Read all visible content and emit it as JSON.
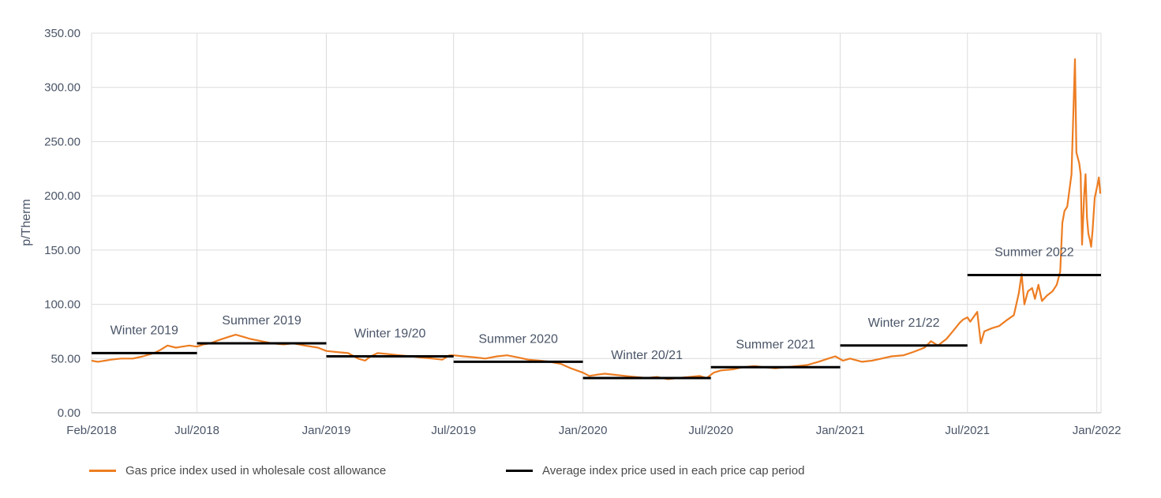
{
  "chart_data": {
    "type": "line",
    "ylabel": "p/Therm",
    "xlabel": "",
    "ylim": [
      0,
      350
    ],
    "yticks": [
      "0.00",
      "50.00",
      "100.00",
      "150.00",
      "200.00",
      "250.00",
      "300.00",
      "350.00"
    ],
    "xticks": [
      {
        "label": "Feb/2018",
        "date": "2018-02-01"
      },
      {
        "label": "Jul/2018",
        "date": "2018-07-01"
      },
      {
        "label": "Jan/2019",
        "date": "2019-01-01"
      },
      {
        "label": "Jul/2019",
        "date": "2019-07-01"
      },
      {
        "label": "Jan/2020",
        "date": "2020-01-01"
      },
      {
        "label": "Jul/2020",
        "date": "2020-07-01"
      },
      {
        "label": "Jan/2021",
        "date": "2021-01-01"
      },
      {
        "label": "Jul/2021",
        "date": "2021-07-01"
      },
      {
        "label": "Jan/2022",
        "date": "2022-01-01"
      }
    ],
    "xlim": [
      "2018-02-01",
      "2022-01-07"
    ],
    "grid": true,
    "legend_position": "bottom",
    "colors": {
      "gas_index": "#ed7d22",
      "period_average": "#000000",
      "grid": "#dcdcdc",
      "axis_text": "#4a5568"
    },
    "series": [
      {
        "name": "Gas price index used in wholesale cost allowance",
        "points": [
          [
            "2018-02-01",
            48
          ],
          [
            "2018-02-10",
            47
          ],
          [
            "2018-02-20",
            48
          ],
          [
            "2018-03-01",
            49
          ],
          [
            "2018-03-15",
            50
          ],
          [
            "2018-04-01",
            50
          ],
          [
            "2018-04-15",
            52
          ],
          [
            "2018-05-01",
            55
          ],
          [
            "2018-05-10",
            58
          ],
          [
            "2018-05-20",
            62
          ],
          [
            "2018-06-01",
            60
          ],
          [
            "2018-06-10",
            61
          ],
          [
            "2018-06-20",
            62
          ],
          [
            "2018-07-01",
            61
          ],
          [
            "2018-07-10",
            63
          ],
          [
            "2018-07-20",
            64
          ],
          [
            "2018-08-01",
            67
          ],
          [
            "2018-08-15",
            70
          ],
          [
            "2018-08-25",
            72
          ],
          [
            "2018-09-05",
            70
          ],
          [
            "2018-09-15",
            68
          ],
          [
            "2018-10-01",
            66
          ],
          [
            "2018-10-15",
            64
          ],
          [
            "2018-11-01",
            63
          ],
          [
            "2018-11-15",
            64
          ],
          [
            "2018-12-01",
            62
          ],
          [
            "2018-12-20",
            60
          ],
          [
            "2019-01-01",
            57
          ],
          [
            "2019-01-15",
            56
          ],
          [
            "2019-02-01",
            55
          ],
          [
            "2019-02-15",
            50
          ],
          [
            "2019-02-25",
            48
          ],
          [
            "2019-03-05",
            52
          ],
          [
            "2019-03-15",
            55
          ],
          [
            "2019-04-01",
            54
          ],
          [
            "2019-04-15",
            53
          ],
          [
            "2019-05-01",
            52
          ],
          [
            "2019-05-15",
            51
          ],
          [
            "2019-06-01",
            50
          ],
          [
            "2019-06-15",
            49
          ],
          [
            "2019-06-25",
            53
          ],
          [
            "2019-07-01",
            53
          ],
          [
            "2019-07-15",
            52
          ],
          [
            "2019-08-01",
            51
          ],
          [
            "2019-08-15",
            50
          ],
          [
            "2019-09-01",
            52
          ],
          [
            "2019-09-15",
            53
          ],
          [
            "2019-10-01",
            51
          ],
          [
            "2019-10-15",
            49
          ],
          [
            "2019-11-01",
            48
          ],
          [
            "2019-11-15",
            47
          ],
          [
            "2019-12-01",
            45
          ],
          [
            "2019-12-15",
            41
          ],
          [
            "2020-01-01",
            37
          ],
          [
            "2020-01-10",
            34
          ],
          [
            "2020-01-20",
            35
          ],
          [
            "2020-02-01",
            36
          ],
          [
            "2020-02-15",
            35
          ],
          [
            "2020-03-01",
            34
          ],
          [
            "2020-03-15",
            33
          ],
          [
            "2020-04-01",
            32
          ],
          [
            "2020-04-15",
            33
          ],
          [
            "2020-05-01",
            31
          ],
          [
            "2020-05-15",
            32
          ],
          [
            "2020-06-01",
            33
          ],
          [
            "2020-06-15",
            34
          ],
          [
            "2020-06-25",
            32
          ],
          [
            "2020-07-05",
            37
          ],
          [
            "2020-07-15",
            39
          ],
          [
            "2020-08-01",
            40
          ],
          [
            "2020-08-15",
            42
          ],
          [
            "2020-09-01",
            43
          ],
          [
            "2020-09-15",
            42
          ],
          [
            "2020-10-01",
            41
          ],
          [
            "2020-10-15",
            42
          ],
          [
            "2020-11-01",
            43
          ],
          [
            "2020-11-15",
            44
          ],
          [
            "2020-12-01",
            47
          ],
          [
            "2020-12-15",
            50
          ],
          [
            "2020-12-25",
            52
          ],
          [
            "2021-01-05",
            48
          ],
          [
            "2021-01-15",
            50
          ],
          [
            "2021-02-01",
            47
          ],
          [
            "2021-02-15",
            48
          ],
          [
            "2021-03-01",
            50
          ],
          [
            "2021-03-15",
            52
          ],
          [
            "2021-04-01",
            53
          ],
          [
            "2021-04-15",
            56
          ],
          [
            "2021-05-01",
            60
          ],
          [
            "2021-05-10",
            66
          ],
          [
            "2021-05-20",
            62
          ],
          [
            "2021-06-01",
            68
          ],
          [
            "2021-06-10",
            75
          ],
          [
            "2021-06-20",
            83
          ],
          [
            "2021-06-25",
            86
          ],
          [
            "2021-07-01",
            88
          ],
          [
            "2021-07-05",
            84
          ],
          [
            "2021-07-15",
            93
          ],
          [
            "2021-07-20",
            64
          ],
          [
            "2021-07-25",
            75
          ],
          [
            "2021-08-05",
            78
          ],
          [
            "2021-08-15",
            80
          ],
          [
            "2021-08-25",
            85
          ],
          [
            "2021-09-05",
            90
          ],
          [
            "2021-09-12",
            110
          ],
          [
            "2021-09-16",
            128
          ],
          [
            "2021-09-20",
            100
          ],
          [
            "2021-09-25",
            112
          ],
          [
            "2021-10-01",
            115
          ],
          [
            "2021-10-05",
            105
          ],
          [
            "2021-10-10",
            118
          ],
          [
            "2021-10-15",
            103
          ],
          [
            "2021-10-22",
            108
          ],
          [
            "2021-10-30",
            112
          ],
          [
            "2021-11-05",
            118
          ],
          [
            "2021-11-10",
            130
          ],
          [
            "2021-11-13",
            175
          ],
          [
            "2021-11-16",
            186
          ],
          [
            "2021-11-20",
            190
          ],
          [
            "2021-11-26",
            220
          ],
          [
            "2021-12-01",
            326
          ],
          [
            "2021-12-03",
            240
          ],
          [
            "2021-12-07",
            230
          ],
          [
            "2021-12-09",
            220
          ],
          [
            "2021-12-11",
            155
          ],
          [
            "2021-12-14",
            200
          ],
          [
            "2021-12-16",
            220
          ],
          [
            "2021-12-18",
            180
          ],
          [
            "2021-12-20",
            165
          ],
          [
            "2021-12-22",
            160
          ],
          [
            "2021-12-24",
            153
          ],
          [
            "2021-12-26",
            168
          ],
          [
            "2021-12-29",
            198
          ],
          [
            "2022-01-02",
            210
          ],
          [
            "2022-01-04",
            217
          ],
          [
            "2022-01-06",
            202
          ]
        ]
      },
      {
        "name": "Average index price used in each price cap period",
        "segments": [
          {
            "label": "Winter 2019",
            "start": "2018-02-01",
            "end": "2018-07-01",
            "value": 55
          },
          {
            "label": "Summer 2019",
            "start": "2018-07-01",
            "end": "2019-01-01",
            "value": 64
          },
          {
            "label": "Winter 19/20",
            "start": "2019-01-01",
            "end": "2019-07-01",
            "value": 52
          },
          {
            "label": "Summer 2020",
            "start": "2019-07-01",
            "end": "2020-01-01",
            "value": 47
          },
          {
            "label": "Winter 20/21",
            "start": "2020-01-01",
            "end": "2020-07-01",
            "value": 32
          },
          {
            "label": "Summer 2021",
            "start": "2020-07-01",
            "end": "2021-01-01",
            "value": 42
          },
          {
            "label": "Winter 21/22",
            "start": "2021-01-01",
            "end": "2021-07-01",
            "value": 62
          },
          {
            "label": "Summer 2022",
            "start": "2021-07-01",
            "end": "2022-01-07",
            "value": 127
          }
        ]
      }
    ]
  },
  "legend": [
    {
      "label": "Gas price index used in wholesale cost allowance",
      "color": "#ed7d22"
    },
    {
      "label": "Average index price used in each price cap period",
      "color": "#000000"
    }
  ]
}
